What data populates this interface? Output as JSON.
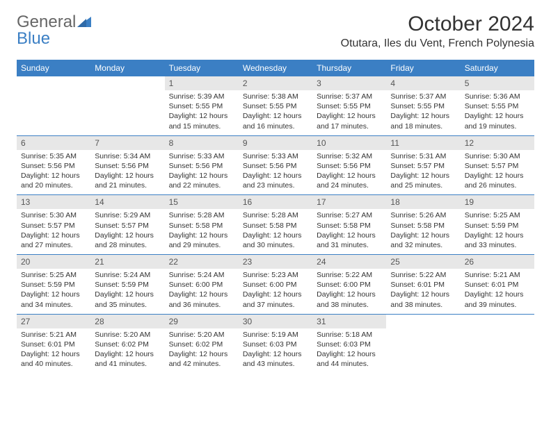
{
  "logo": {
    "text1": "General",
    "text2": "Blue"
  },
  "title": "October 2024",
  "location": "Otutara, Iles du Vent, French Polynesia",
  "colors": {
    "accent": "#3b7fc4",
    "daynum_bg": "#e7e7e7",
    "text": "#333333",
    "logo_gray": "#666666",
    "background": "#ffffff"
  },
  "weekdays": [
    "Sunday",
    "Monday",
    "Tuesday",
    "Wednesday",
    "Thursday",
    "Friday",
    "Saturday"
  ],
  "weeks": [
    [
      {
        "empty": true
      },
      {
        "empty": true
      },
      {
        "n": "1",
        "sr": "Sunrise: 5:39 AM",
        "ss": "Sunset: 5:55 PM",
        "dl": "Daylight: 12 hours and 15 minutes."
      },
      {
        "n": "2",
        "sr": "Sunrise: 5:38 AM",
        "ss": "Sunset: 5:55 PM",
        "dl": "Daylight: 12 hours and 16 minutes."
      },
      {
        "n": "3",
        "sr": "Sunrise: 5:37 AM",
        "ss": "Sunset: 5:55 PM",
        "dl": "Daylight: 12 hours and 17 minutes."
      },
      {
        "n": "4",
        "sr": "Sunrise: 5:37 AM",
        "ss": "Sunset: 5:55 PM",
        "dl": "Daylight: 12 hours and 18 minutes."
      },
      {
        "n": "5",
        "sr": "Sunrise: 5:36 AM",
        "ss": "Sunset: 5:55 PM",
        "dl": "Daylight: 12 hours and 19 minutes."
      }
    ],
    [
      {
        "n": "6",
        "sr": "Sunrise: 5:35 AM",
        "ss": "Sunset: 5:56 PM",
        "dl": "Daylight: 12 hours and 20 minutes."
      },
      {
        "n": "7",
        "sr": "Sunrise: 5:34 AM",
        "ss": "Sunset: 5:56 PM",
        "dl": "Daylight: 12 hours and 21 minutes."
      },
      {
        "n": "8",
        "sr": "Sunrise: 5:33 AM",
        "ss": "Sunset: 5:56 PM",
        "dl": "Daylight: 12 hours and 22 minutes."
      },
      {
        "n": "9",
        "sr": "Sunrise: 5:33 AM",
        "ss": "Sunset: 5:56 PM",
        "dl": "Daylight: 12 hours and 23 minutes."
      },
      {
        "n": "10",
        "sr": "Sunrise: 5:32 AM",
        "ss": "Sunset: 5:56 PM",
        "dl": "Daylight: 12 hours and 24 minutes."
      },
      {
        "n": "11",
        "sr": "Sunrise: 5:31 AM",
        "ss": "Sunset: 5:57 PM",
        "dl": "Daylight: 12 hours and 25 minutes."
      },
      {
        "n": "12",
        "sr": "Sunrise: 5:30 AM",
        "ss": "Sunset: 5:57 PM",
        "dl": "Daylight: 12 hours and 26 minutes."
      }
    ],
    [
      {
        "n": "13",
        "sr": "Sunrise: 5:30 AM",
        "ss": "Sunset: 5:57 PM",
        "dl": "Daylight: 12 hours and 27 minutes."
      },
      {
        "n": "14",
        "sr": "Sunrise: 5:29 AM",
        "ss": "Sunset: 5:57 PM",
        "dl": "Daylight: 12 hours and 28 minutes."
      },
      {
        "n": "15",
        "sr": "Sunrise: 5:28 AM",
        "ss": "Sunset: 5:58 PM",
        "dl": "Daylight: 12 hours and 29 minutes."
      },
      {
        "n": "16",
        "sr": "Sunrise: 5:28 AM",
        "ss": "Sunset: 5:58 PM",
        "dl": "Daylight: 12 hours and 30 minutes."
      },
      {
        "n": "17",
        "sr": "Sunrise: 5:27 AM",
        "ss": "Sunset: 5:58 PM",
        "dl": "Daylight: 12 hours and 31 minutes."
      },
      {
        "n": "18",
        "sr": "Sunrise: 5:26 AM",
        "ss": "Sunset: 5:58 PM",
        "dl": "Daylight: 12 hours and 32 minutes."
      },
      {
        "n": "19",
        "sr": "Sunrise: 5:25 AM",
        "ss": "Sunset: 5:59 PM",
        "dl": "Daylight: 12 hours and 33 minutes."
      }
    ],
    [
      {
        "n": "20",
        "sr": "Sunrise: 5:25 AM",
        "ss": "Sunset: 5:59 PM",
        "dl": "Daylight: 12 hours and 34 minutes."
      },
      {
        "n": "21",
        "sr": "Sunrise: 5:24 AM",
        "ss": "Sunset: 5:59 PM",
        "dl": "Daylight: 12 hours and 35 minutes."
      },
      {
        "n": "22",
        "sr": "Sunrise: 5:24 AM",
        "ss": "Sunset: 6:00 PM",
        "dl": "Daylight: 12 hours and 36 minutes."
      },
      {
        "n": "23",
        "sr": "Sunrise: 5:23 AM",
        "ss": "Sunset: 6:00 PM",
        "dl": "Daylight: 12 hours and 37 minutes."
      },
      {
        "n": "24",
        "sr": "Sunrise: 5:22 AM",
        "ss": "Sunset: 6:00 PM",
        "dl": "Daylight: 12 hours and 38 minutes."
      },
      {
        "n": "25",
        "sr": "Sunrise: 5:22 AM",
        "ss": "Sunset: 6:01 PM",
        "dl": "Daylight: 12 hours and 38 minutes."
      },
      {
        "n": "26",
        "sr": "Sunrise: 5:21 AM",
        "ss": "Sunset: 6:01 PM",
        "dl": "Daylight: 12 hours and 39 minutes."
      }
    ],
    [
      {
        "n": "27",
        "sr": "Sunrise: 5:21 AM",
        "ss": "Sunset: 6:01 PM",
        "dl": "Daylight: 12 hours and 40 minutes."
      },
      {
        "n": "28",
        "sr": "Sunrise: 5:20 AM",
        "ss": "Sunset: 6:02 PM",
        "dl": "Daylight: 12 hours and 41 minutes."
      },
      {
        "n": "29",
        "sr": "Sunrise: 5:20 AM",
        "ss": "Sunset: 6:02 PM",
        "dl": "Daylight: 12 hours and 42 minutes."
      },
      {
        "n": "30",
        "sr": "Sunrise: 5:19 AM",
        "ss": "Sunset: 6:03 PM",
        "dl": "Daylight: 12 hours and 43 minutes."
      },
      {
        "n": "31",
        "sr": "Sunrise: 5:18 AM",
        "ss": "Sunset: 6:03 PM",
        "dl": "Daylight: 12 hours and 44 minutes."
      },
      {
        "empty": true
      },
      {
        "empty": true
      }
    ]
  ]
}
